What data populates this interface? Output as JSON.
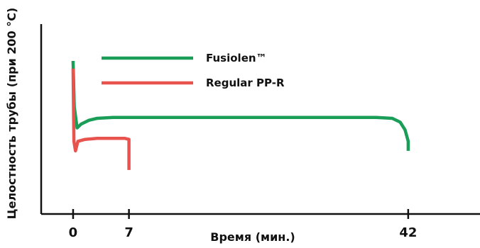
{
  "chart_data": {
    "type": "line",
    "xlabel": "Время (мин.)",
    "ylabel": "Целостность трубы (при 200 °C)",
    "x_ticks": [
      0,
      7,
      42
    ],
    "xlim": [
      -4,
      51
    ],
    "ylim": [
      0,
      1
    ],
    "grid": false,
    "legend_position": "top-left",
    "series": [
      {
        "name": "Fusiolen™",
        "color": "#1a9e57",
        "x": [
          0,
          0.15,
          0.5,
          1,
          2,
          3,
          5,
          10,
          20,
          30,
          38,
          40,
          41,
          41.6,
          42,
          42
        ],
        "y": [
          0.8,
          0.56,
          0.45,
          0.47,
          0.49,
          0.5,
          0.505,
          0.505,
          0.505,
          0.505,
          0.505,
          0.5,
          0.48,
          0.44,
          0.38,
          0.33
        ]
      },
      {
        "name": "Regular PP-R",
        "color": "#e8534e",
        "x": [
          0,
          0.1,
          0.3,
          0.6,
          1.5,
          3,
          5,
          6.5,
          7,
          7,
          7
        ],
        "y": [
          0.76,
          0.38,
          0.33,
          0.38,
          0.39,
          0.395,
          0.395,
          0.395,
          0.39,
          0.28,
          0.23
        ]
      }
    ]
  }
}
